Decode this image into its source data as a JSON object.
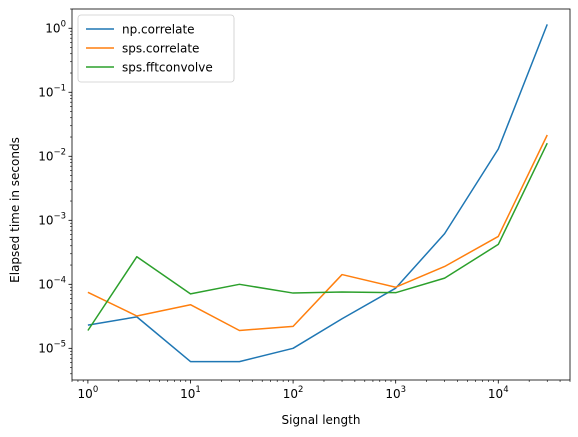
{
  "chart_data": {
    "type": "line",
    "title": "",
    "xlabel": "Signal length",
    "ylabel": "Elapsed time in seconds",
    "xscale": "log",
    "yscale": "log",
    "xlim": [
      0.7,
      50000
    ],
    "ylim": [
      3.2e-06,
      2.0
    ],
    "grid": false,
    "legend_position": "top-left",
    "x_major_ticks": [
      1,
      10,
      100,
      1000,
      10000
    ],
    "x_tick_labels": [
      {
        "base": "10",
        "exp": "0"
      },
      {
        "base": "10",
        "exp": "1"
      },
      {
        "base": "10",
        "exp": "2"
      },
      {
        "base": "10",
        "exp": "3"
      },
      {
        "base": "10",
        "exp": "4"
      }
    ],
    "y_major_ticks": [
      1e-05,
      0.0001,
      0.001,
      0.01,
      0.1,
      1
    ],
    "y_tick_labels": [
      {
        "base": "10",
        "exp": "−5"
      },
      {
        "base": "10",
        "exp": "−4"
      },
      {
        "base": "10",
        "exp": "−3"
      },
      {
        "base": "10",
        "exp": "−2"
      },
      {
        "base": "10",
        "exp": "−1"
      },
      {
        "base": "10",
        "exp": "0"
      }
    ],
    "x": [
      1,
      3,
      10,
      30,
      100,
      300,
      1000,
      3000,
      10000,
      30000
    ],
    "series": [
      {
        "name": "np.correlate",
        "color": "#1f77b4",
        "values": [
          2.3e-05,
          3.1e-05,
          6.2e-06,
          6.2e-06,
          1e-05,
          2.9e-05,
          8.7e-05,
          0.00062,
          0.013,
          1.15
        ]
      },
      {
        "name": "sps.correlate",
        "color": "#ff7f0e",
        "values": [
          7.5e-05,
          3.2e-05,
          4.8e-05,
          1.9e-05,
          2.2e-05,
          0.000142,
          9e-05,
          0.00019,
          0.00056,
          0.0215
        ]
      },
      {
        "name": "sps.fftconvolve",
        "color": "#2ca02c",
        "values": [
          1.9e-05,
          0.00027,
          7.1e-05,
          0.0001,
          7.3e-05,
          7.6e-05,
          7.4e-05,
          0.000125,
          0.00042,
          0.016
        ]
      }
    ]
  }
}
